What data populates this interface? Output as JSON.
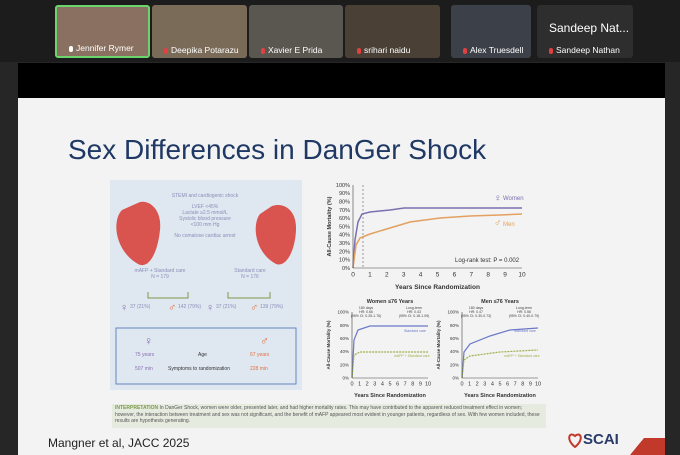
{
  "participants": [
    {
      "name": "Jennifer Rymer"
    },
    {
      "name": "Deepika Potarazu"
    },
    {
      "name": "Xavier E Prida"
    },
    {
      "name": "srihari naidu"
    },
    {
      "name": "Alex Truesdell"
    },
    {
      "name": "Sandeep Nathan"
    }
  ],
  "active_tile_label": "Sandeep Nat...",
  "slide": {
    "title": "Sex Differences in DanGer Shock",
    "citation": "Mangner et al, JACC 2025",
    "logo": "SCAI",
    "infographic": {
      "criteria": [
        "STEMI and cardiogenic shock",
        "LVEF <45%",
        "Lactate ≥2.5 mmol/L",
        "Systolic blood pressure",
        "<100 mm Hg",
        "No comatose cardiac arrest"
      ],
      "arm_left": "mAFP + Standard care",
      "arm_left_n": "N = 179",
      "arm_right": "Standard care",
      "arm_right_n": "N = 176",
      "counts": [
        "37 (21%)",
        "142 (79%)",
        "37 (21%)",
        "139 (79%)"
      ],
      "age_women": "75 years",
      "age_label": "Age",
      "age_men": "67 years",
      "time_women": "507 min",
      "time_label": "Symptoms to randomization",
      "time_men": "228 min"
    },
    "main_chart": {
      "y_label": "All-Cause Mortality (%)",
      "x_label": "Years Since Randomization",
      "yticks": [
        "0%",
        "10%",
        "20%",
        "30%",
        "40%",
        "50%",
        "60%",
        "70%",
        "80%",
        "90%",
        "100%"
      ],
      "xticks": [
        "0",
        "1",
        "2",
        "3",
        "4",
        "5",
        "6",
        "7",
        "8",
        "9",
        "10"
      ],
      "legend": [
        "Women",
        "Men"
      ],
      "annotation": "Log-rank test: P = 0.002"
    },
    "sub_charts": [
      {
        "title": "Women ≤76 Years",
        "short_label": "180 days",
        "short_hr": "HR: 0.66",
        "short_ci": "(95% CI: 0.25-1.76)",
        "long_label": "Long-term",
        "long_hr": "HR: 0.43",
        "long_ci": "(95% CI: 0.18-1.09)",
        "series_labels": [
          "Standard care",
          "mAFP + Standard care"
        ]
      },
      {
        "title": "Men ≤76 Years",
        "short_label": "180 days",
        "short_hr": "HR: 0.47",
        "short_ci": "(95% CI: 0.30-0.73)",
        "long_label": "Long-term",
        "long_hr": "HR: 0.56",
        "long_ci": "(95% CI: 0.40-0.79)",
        "series_labels": [
          "Standard care",
          "mAFP + Standard care"
        ]
      }
    ],
    "sub_y_label": "All-Cause Mortality (%)",
    "sub_x_label": "Years Since Randomization",
    "sub_yticks": [
      "0%",
      "20%",
      "40%",
      "60%",
      "80%",
      "100%"
    ],
    "sub_xticks": [
      "0",
      "1",
      "2",
      "3",
      "4",
      "5",
      "6",
      "7",
      "8",
      "9",
      "10"
    ],
    "interpretation_head": "INTERPRETATION",
    "interpretation": "In DanGer Shock, women were older, presented later, and had higher mortality rates. This may have contributed to the apparent reduced treatment effect in women; however, the interaction between treatment and sex was not significant, and the benefit of mAFP appeared most evident in younger patients, regardless of sex. With few women included, these results are hypothesis generating."
  }
}
